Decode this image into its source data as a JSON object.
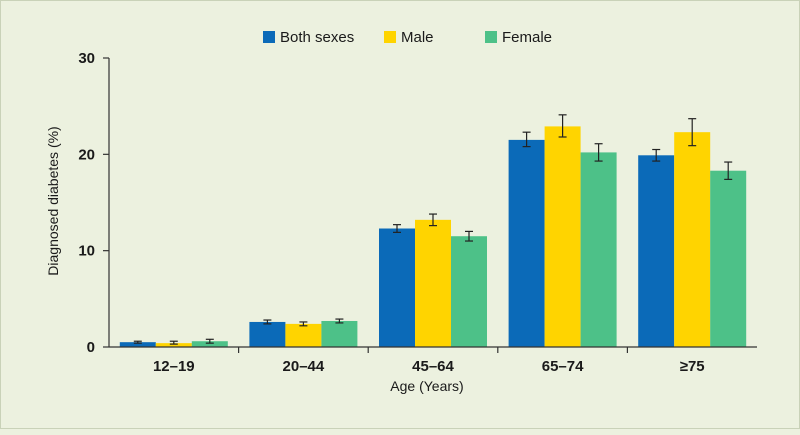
{
  "chart_data": {
    "type": "bar",
    "title": "",
    "xlabel": "Age (Years)",
    "ylabel": "Diagnosed diabetes (%)",
    "ylim": [
      0,
      30
    ],
    "yticks": [
      0,
      10,
      20,
      30
    ],
    "categories": [
      "12–19",
      "20–44",
      "45–64",
      "65–74",
      "≥75"
    ],
    "series": [
      {
        "name": "Both sexes",
        "color": "#0b6ab8",
        "values": [
          0.5,
          2.6,
          12.3,
          21.5,
          19.9
        ],
        "error_low": [
          0.4,
          2.4,
          11.9,
          20.8,
          19.3
        ],
        "error_high": [
          0.6,
          2.8,
          12.7,
          22.3,
          20.5
        ]
      },
      {
        "name": "Male",
        "color": "#ffd400",
        "values": [
          0.4,
          2.4,
          13.2,
          22.9,
          22.3
        ],
        "error_low": [
          0.3,
          2.2,
          12.6,
          21.8,
          20.9
        ],
        "error_high": [
          0.6,
          2.6,
          13.8,
          24.1,
          23.7
        ]
      },
      {
        "name": "Female",
        "color": "#4dc188",
        "values": [
          0.6,
          2.7,
          11.5,
          20.2,
          18.3
        ],
        "error_low": [
          0.4,
          2.5,
          11.0,
          19.3,
          17.4
        ],
        "error_high": [
          0.8,
          2.9,
          12.0,
          21.1,
          19.2
        ]
      }
    ],
    "legend_position": "top-center",
    "grid": false
  }
}
